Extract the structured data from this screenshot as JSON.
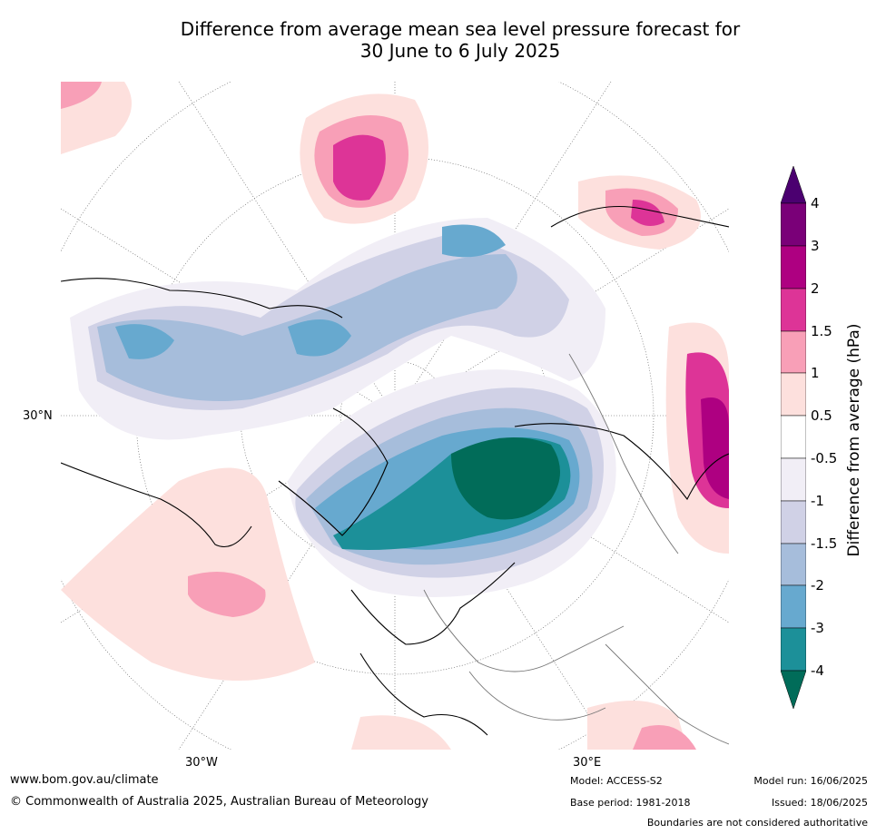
{
  "title": {
    "line1": "Difference from average mean sea level pressure forecast for",
    "line2": "30 June to 6 July 2025"
  },
  "axes": {
    "lat_label": "30°N",
    "lon_label_left": "30°W",
    "lon_label_right": "30°E"
  },
  "colorbar": {
    "title": "Difference from average (hPa)",
    "ticks": [
      "4",
      "3",
      "2",
      "1.5",
      "1",
      "0.5",
      "-0.5",
      "-1",
      "-1.5",
      "-2",
      "-3",
      "-4"
    ],
    "colors": {
      "above_4": "#4b0070",
      "3_to_4": "#7a0078",
      "2_to_3": "#ae0081",
      "1.5_to_2": "#dd3497",
      "1_to_1.5": "#f89fb7",
      "0.5_to_1": "#fde0dd",
      "neutral": "#ffffff",
      "-1_to_-0.5": "#f1eef6",
      "-1.5_to_-1": "#d0d1e6",
      "-2_to_-1.5": "#a6bddb",
      "-3_to_-2": "#67a9cf",
      "-4_to_-3": "#1c9099",
      "below_-4": "#016c59"
    }
  },
  "footer": {
    "url": "www.bom.gov.au/climate",
    "copyright": "© Commonwealth of Australia 2025, Australian Bureau of Meteorology",
    "model": "Model: ACCESS-S2",
    "base_period": "Base period: 1981-2018",
    "model_run": "Model run: 16/06/2025",
    "issued": "Issued: 18/06/2025",
    "disclaimer": "Boundaries are not considered authoritative"
  }
}
